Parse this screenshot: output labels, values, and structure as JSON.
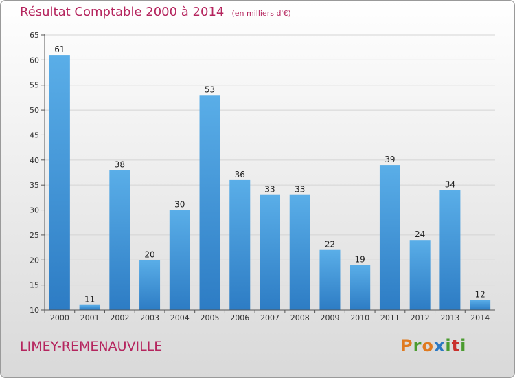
{
  "chart_data": {
    "type": "bar",
    "title": "Résultat Comptable 2000 à 2014",
    "unit_note": "(en milliers d'€)",
    "categories": [
      "2000",
      "2001",
      "2002",
      "2003",
      "2004",
      "2005",
      "2006",
      "2007",
      "2008",
      "2009",
      "2010",
      "2011",
      "2012",
      "2013",
      "2014"
    ],
    "values": [
      61,
      11,
      38,
      20,
      30,
      53,
      36,
      33,
      33,
      22,
      19,
      39,
      24,
      34,
      12
    ],
    "yticks": [
      10,
      15,
      20,
      25,
      30,
      35,
      40,
      45,
      50,
      55,
      60,
      65
    ],
    "ylim": [
      10,
      65
    ],
    "grid": true,
    "xlabel": "",
    "ylabel": ""
  },
  "footer": {
    "commune": "LIMEY-REMENAUVILLE",
    "logo_letters": [
      "P",
      "r",
      "o",
      "x",
      "i",
      "t",
      "i"
    ]
  },
  "colors": {
    "title": "#b5255e",
    "bar_top": "#5aaee8",
    "bar_bottom": "#2d7cc4",
    "logo": [
      "#e07a1f",
      "#4a9b2f",
      "#e07a1f",
      "#2b78c2",
      "#4a9b2f",
      "#c9302c",
      "#4a9b2f"
    ]
  }
}
